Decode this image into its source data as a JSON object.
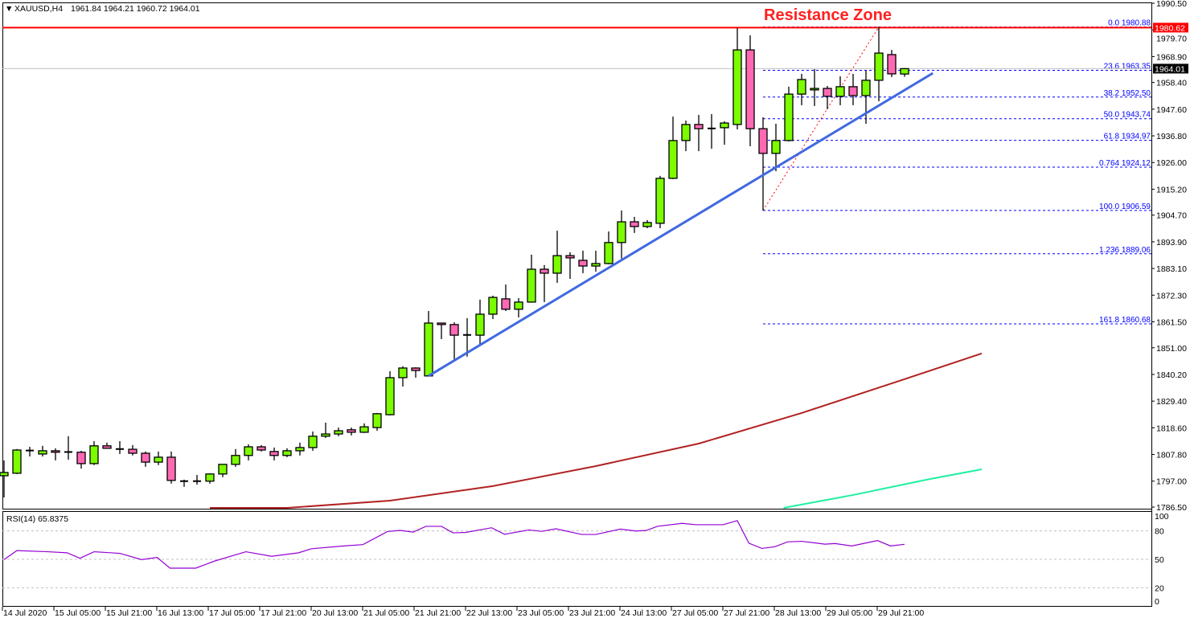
{
  "header": {
    "symbol_caret": "▼",
    "symbol": "XAUUSD,H4",
    "ohlc": "1961.84 1964.21 1960.72 1964.01"
  },
  "colors": {
    "bull": "#7cfc00",
    "bear": "#ff69b4",
    "resistance": "#ff0000",
    "trendline": "#4169e1",
    "fib": "#0000ff",
    "ma_slow": "#b22222",
    "ma_fast": "#1ef0a0",
    "rsi": "#9400d3",
    "current_price_line": "#c0c0c0"
  },
  "chart_data": [
    {
      "type": "candlestick",
      "title": "Resistance Zone",
      "ylim": [
        1786.5,
        1990.5
      ],
      "y_ticks": [
        "1990.50",
        "1979.70",
        "1968.90",
        "1958.40",
        "1947.60",
        "1936.80",
        "1926.00",
        "1915.20",
        "1904.70",
        "1893.90",
        "1883.10",
        "1872.30",
        "1861.50",
        "1851.00",
        "1840.20",
        "1829.40",
        "1818.60",
        "1807.80",
        "1797.00",
        "1786.50"
      ],
      "x_ticks": [
        "14 Jul 2020",
        "15 Jul 05:00",
        "15 Jul 21:00",
        "16 Jul 13:00",
        "17 Jul 05:00",
        "17 Jul 21:00",
        "20 Jul 13:00",
        "21 Jul 05:00",
        "21 Jul 21:00",
        "22 Jul 13:00",
        "23 Jul 05:00",
        "23 Jul 21:00",
        "24 Jul 13:00",
        "27 Jul 05:00",
        "27 Jul 21:00",
        "28 Jul 13:00",
        "29 Jul 05:00",
        "29 Jul 21:00"
      ],
      "ohlc_columns": [
        "open",
        "high",
        "low",
        "close"
      ],
      "candles": [
        [
          1799.2,
          1805.4,
          1790.4,
          1800.5
        ],
        [
          1800.2,
          1810.0,
          1799.9,
          1809.6
        ],
        [
          1809.3,
          1810.9,
          1807.0,
          1809.4
        ],
        [
          1808.0,
          1811.3,
          1807.0,
          1809.3
        ],
        [
          1809.3,
          1810.3,
          1805.4,
          1808.7
        ],
        [
          1808.7,
          1815.2,
          1805.7,
          1808.8
        ],
        [
          1808.7,
          1809.3,
          1802.1,
          1804.1
        ],
        [
          1804.1,
          1813.2,
          1803.5,
          1811.3
        ],
        [
          1811.3,
          1812.6,
          1810.3,
          1810.3
        ],
        [
          1809.9,
          1813.2,
          1808.0,
          1810.0
        ],
        [
          1809.9,
          1811.6,
          1807.4,
          1808.3
        ],
        [
          1808.3,
          1809.0,
          1802.8,
          1804.7
        ],
        [
          1804.7,
          1809.0,
          1803.5,
          1806.7
        ],
        [
          1806.7,
          1809.0,
          1796.0,
          1797.3
        ],
        [
          1797.3,
          1797.6,
          1794.7,
          1797.0
        ],
        [
          1797.0,
          1799.5,
          1795.6,
          1797.0
        ],
        [
          1797.0,
          1800.2,
          1796.0,
          1799.9
        ],
        [
          1799.9,
          1803.8,
          1798.6,
          1803.8
        ],
        [
          1803.8,
          1810.0,
          1802.8,
          1807.4
        ],
        [
          1807.4,
          1811.9,
          1805.4,
          1810.9
        ],
        [
          1810.9,
          1811.6,
          1809.0,
          1809.6
        ],
        [
          1809.0,
          1810.6,
          1805.4,
          1807.4
        ],
        [
          1807.4,
          1810.3,
          1806.7,
          1809.3
        ],
        [
          1809.3,
          1812.6,
          1807.4,
          1810.6
        ],
        [
          1810.6,
          1817.1,
          1809.3,
          1815.2
        ],
        [
          1815.2,
          1820.7,
          1814.5,
          1816.1
        ],
        [
          1816.1,
          1818.7,
          1815.2,
          1817.4
        ],
        [
          1817.8,
          1818.7,
          1815.5,
          1816.8
        ],
        [
          1816.8,
          1820.4,
          1816.5,
          1819.0
        ],
        [
          1818.7,
          1824.6,
          1817.4,
          1824.3
        ],
        [
          1823.9,
          1841.5,
          1823.6,
          1838.9
        ],
        [
          1838.9,
          1843.5,
          1835.3,
          1842.8
        ],
        [
          1842.8,
          1843.1,
          1838.9,
          1841.8
        ],
        [
          1839.6,
          1865.9,
          1839.6,
          1861.0
        ],
        [
          1861.0,
          1861.0,
          1854.5,
          1860.4
        ],
        [
          1860.4,
          1861.3,
          1846.1,
          1856.1
        ],
        [
          1856.1,
          1863.0,
          1847.4,
          1856.2
        ],
        [
          1856.1,
          1870.5,
          1851.9,
          1864.6
        ],
        [
          1864.6,
          1872.1,
          1862.6,
          1871.4
        ],
        [
          1870.8,
          1876.6,
          1865.9,
          1866.6
        ],
        [
          1866.6,
          1871.1,
          1863.3,
          1869.5
        ],
        [
          1869.5,
          1888.7,
          1869.5,
          1882.8
        ],
        [
          1882.8,
          1884.5,
          1869.5,
          1881.2
        ],
        [
          1881.2,
          1898.4,
          1877.3,
          1888.3
        ],
        [
          1888.3,
          1889.7,
          1878.9,
          1887.4
        ],
        [
          1886.4,
          1890.3,
          1881.2,
          1884.1
        ],
        [
          1884.1,
          1890.3,
          1881.8,
          1885.1
        ],
        [
          1885.1,
          1898.1,
          1884.8,
          1893.6
        ],
        [
          1893.6,
          1906.6,
          1887.1,
          1902.0
        ],
        [
          1902.0,
          1904.0,
          1897.5,
          1900.1
        ],
        [
          1900.1,
          1902.7,
          1899.4,
          1901.7
        ],
        [
          1901.4,
          1920.6,
          1899.4,
          1919.6
        ],
        [
          1919.6,
          1944.6,
          1919.3,
          1934.9
        ],
        [
          1934.9,
          1943.0,
          1930.6,
          1941.4
        ],
        [
          1941.4,
          1945.3,
          1930.6,
          1939.7
        ],
        [
          1939.7,
          1945.6,
          1931.6,
          1939.8
        ],
        [
          1940.1,
          1942.7,
          1933.2,
          1942.0
        ],
        [
          1941.4,
          1980.4,
          1939.4,
          1971.6
        ],
        [
          1971.6,
          1977.5,
          1932.6,
          1939.7
        ],
        [
          1939.7,
          1944.3,
          1906.6,
          1929.7
        ],
        [
          1929.7,
          1941.7,
          1922.5,
          1934.9
        ],
        [
          1934.9,
          1956.7,
          1934.5,
          1953.7
        ],
        [
          1953.7,
          1961.9,
          1949.2,
          1959.6
        ],
        [
          1955.4,
          1963.8,
          1948.9,
          1956.0
        ],
        [
          1956.0,
          1957.0,
          1947.6,
          1952.8
        ],
        [
          1952.8,
          1960.9,
          1949.2,
          1956.7
        ],
        [
          1956.7,
          1961.9,
          1949.2,
          1953.1
        ],
        [
          1953.1,
          1963.2,
          1941.7,
          1959.3
        ],
        [
          1959.3,
          1980.9,
          1950.8,
          1970.3
        ],
        [
          1969.7,
          1971.6,
          1960.6,
          1961.9
        ],
        [
          1961.84,
          1964.21,
          1960.72,
          1964.01
        ]
      ],
      "current_price": "1964.01",
      "resistance_price": "1980.62",
      "moving_averages": [
        {
          "points_bar_price": [
            [
              16,
              1785.0
            ],
            [
              22,
              1785.9
            ],
            [
              30,
              1789.1
            ],
            [
              38,
              1795.0
            ],
            [
              46,
              1803.1
            ],
            [
              54,
              1812.2
            ],
            [
              62,
              1824.6
            ],
            [
              70,
              1838.3
            ],
            [
              76,
              1848.7
            ]
          ]
        },
        {
          "points_bar_price": [
            [
              60.6,
              1785.0
            ],
            [
              66,
              1791.4
            ],
            [
              72,
              1797.9
            ],
            [
              76,
              1801.8
            ]
          ]
        }
      ],
      "trendline_bar_price": [
        [
          33,
          1839.6
        ],
        [
          72.2,
          1962.2
        ]
      ],
      "fibonacci": {
        "swing_bar_price": [
          [
            59,
            1906.59
          ],
          [
            68,
            1980.88
          ]
        ],
        "levels": [
          {
            "label": "0.0 1980.88",
            "price": 1980.88
          },
          {
            "label": "23.6 1963.35",
            "price": 1963.35
          },
          {
            "label": "38.2 1952.50",
            "price": 1952.5
          },
          {
            "label": "50.0 1943.74",
            "price": 1943.74
          },
          {
            "label": "61.8 1934.97",
            "price": 1934.97
          },
          {
            "label": "0.764 1924.12",
            "price": 1924.12
          },
          {
            "label": "100.0 1906.59",
            "price": 1906.59
          },
          {
            "label": "1.236 1889.06",
            "price": 1889.06
          },
          {
            "label": "161.8 1860.68",
            "price": 1860.68
          }
        ]
      }
    },
    {
      "type": "line",
      "label": "RSI(14) 65.8375",
      "ylim": [
        0,
        100
      ],
      "y_ticks": [
        "100",
        "80",
        "50",
        "20",
        "0"
      ],
      "levels": [
        80,
        50,
        20
      ],
      "points_bar_value": [
        [
          0,
          49.7
        ],
        [
          1,
          59.2
        ],
        [
          3.4,
          58
        ],
        [
          4.9,
          56.9
        ],
        [
          5.9,
          51.1
        ],
        [
          7,
          58
        ],
        [
          9,
          56.3
        ],
        [
          10.7,
          49.7
        ],
        [
          11.9,
          52
        ],
        [
          12.9,
          40.7
        ],
        [
          14.9,
          40.7
        ],
        [
          16.4,
          48.3
        ],
        [
          18.8,
          58
        ],
        [
          20.8,
          53.2
        ],
        [
          22.9,
          56.9
        ],
        [
          23.9,
          61.2
        ],
        [
          26.4,
          64.1
        ],
        [
          27.9,
          65.5
        ],
        [
          29.8,
          79.3
        ],
        [
          30.8,
          80.5
        ],
        [
          31.8,
          78.7
        ],
        [
          32.8,
          84.8
        ],
        [
          34,
          84.8
        ],
        [
          34.9,
          77.9
        ],
        [
          35.9,
          78.4
        ],
        [
          37.9,
          83.3
        ],
        [
          38.9,
          76.4
        ],
        [
          40.8,
          81
        ],
        [
          41.8,
          79.5
        ],
        [
          42.9,
          82.2
        ],
        [
          44.9,
          76.2
        ],
        [
          46,
          76.2
        ],
        [
          47.9,
          81.9
        ],
        [
          49.1,
          79.9
        ],
        [
          49.9,
          80.4
        ],
        [
          50.8,
          84.8
        ],
        [
          52.7,
          87.9
        ],
        [
          53.8,
          86.5
        ],
        [
          55.9,
          86.5
        ],
        [
          57,
          90.8
        ],
        [
          57.9,
          67
        ],
        [
          58.9,
          61.5
        ],
        [
          59.9,
          63.2
        ],
        [
          60.9,
          68.4
        ],
        [
          62,
          69
        ],
        [
          63.8,
          66
        ],
        [
          64.6,
          66.6
        ],
        [
          65.9,
          64.1
        ],
        [
          67.9,
          69.8
        ],
        [
          68.9,
          64.1
        ],
        [
          70,
          65.84
        ]
      ]
    }
  ]
}
